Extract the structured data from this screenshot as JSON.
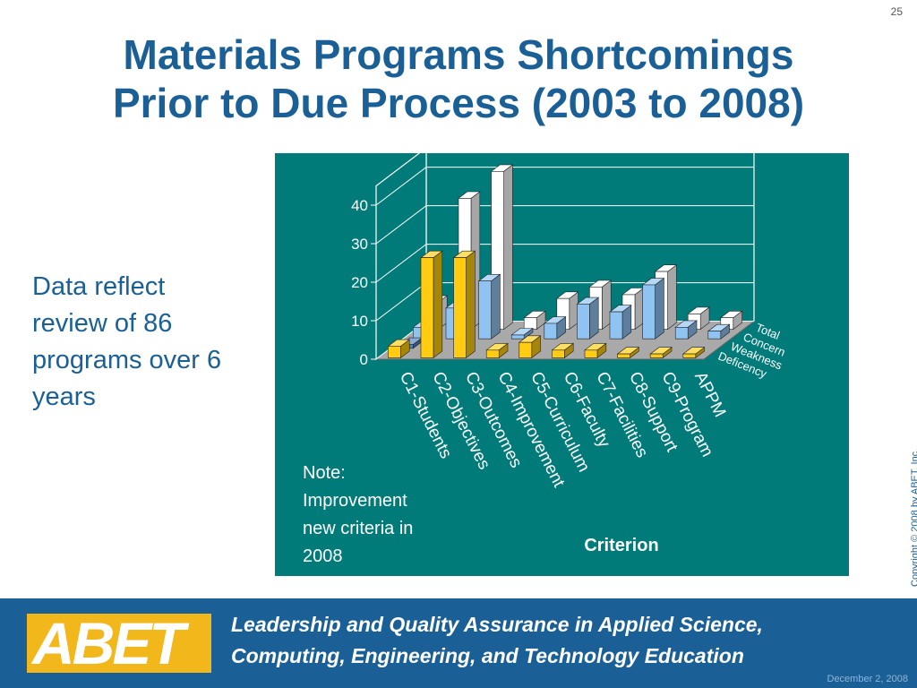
{
  "slide": {
    "number": "25",
    "title_lines": [
      "Materials Programs Shortcomings",
      "Prior to Due Process (2003 to 2008)"
    ],
    "side_note": "Data reflect review of 86 programs over 6 years",
    "chart_note_lines": [
      "Note:",
      "Improvement",
      "new criteria in",
      "2008"
    ],
    "copyright": "Copyright © 2008 by ABET, Inc."
  },
  "footer": {
    "logo": "ABET",
    "tagline_lines": [
      "Leadership and Quality Assurance in Applied Science,",
      "Computing, Engineering, and Technology Education"
    ],
    "date": "December 2, 2008"
  },
  "chart_data": {
    "type": "bar",
    "title": "",
    "xlabel": "Criterion",
    "ylabel": "",
    "ylim": [
      0,
      40
    ],
    "yticks": [
      0,
      10,
      20,
      30,
      40
    ],
    "grid": true,
    "categories": [
      "C1-Students",
      "C2-Objectives",
      "C3-Outcomes",
      "C4-Improvement",
      "C5-Curriculum",
      "C6-Faculty",
      "C7-Facilities",
      "C8-Support",
      "C9-Program",
      "APPM"
    ],
    "series": [
      {
        "name": "Deficency",
        "values": [
          3,
          26,
          26,
          2,
          4,
          2,
          2,
          1,
          1,
          1
        ]
      },
      {
        "name": "Weakness",
        "values": [
          1,
          0,
          0,
          0,
          0,
          0,
          0,
          0,
          0,
          0
        ]
      },
      {
        "name": "Concern",
        "values": [
          3,
          8,
          15,
          1,
          4,
          9,
          7,
          14,
          3,
          2
        ]
      },
      {
        "name": "Total",
        "values": [
          7,
          34,
          41,
          3,
          8,
          11,
          9,
          15,
          4,
          3
        ]
      }
    ],
    "colors": {
      "Deficency": "#ffcc11",
      "Weakness": "#4f7fbf",
      "Concern": "#8fc3f2",
      "Total": "#ffffff",
      "floor": "#a9a9a9",
      "background": "#007b7a"
    },
    "legend_position": "right"
  }
}
